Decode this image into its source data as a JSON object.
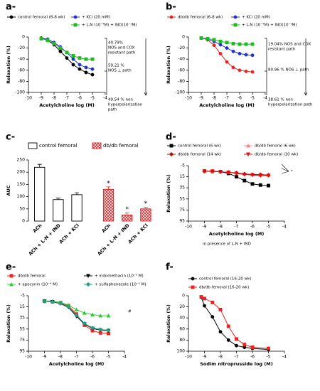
{
  "chart_data": [
    {
      "type": "line",
      "label": "a-",
      "x_label": "Acetylcholine log (M)",
      "y_label": "Relaxation (%)",
      "xlim": [
        -10,
        -4
      ],
      "xticks": [
        -10,
        -9,
        -8,
        -7,
        -6,
        -5,
        -4
      ],
      "ylim": [
        -100,
        0
      ],
      "yticks": [
        0,
        -20,
        -40,
        -60,
        -80,
        -100
      ],
      "x": [
        -9,
        -8.5,
        -8,
        -7.5,
        -7,
        -6.5,
        -6,
        -5.5,
        -5
      ],
      "series": [
        {
          "name": "control femoral (6-8 wk)",
          "color": "#000000",
          "marker": "circle",
          "values": [
            -2,
            -6,
            -14,
            -26,
            -38,
            -50,
            -58,
            -64,
            -68
          ],
          "errors": [
            1,
            2,
            3,
            3,
            3,
            3,
            3,
            3,
            3
          ]
        },
        {
          "name": "+ KCl (20 mM)",
          "color": "#2233cc",
          "marker": "circle",
          "values": [
            -2,
            -4,
            -10,
            -18,
            -28,
            -40,
            -50,
            -55,
            -58
          ],
          "errors": [
            1,
            2,
            2,
            3,
            3,
            3,
            3,
            3,
            3
          ]
        },
        {
          "name": "+ L-N (10⁻⁴M) + IND(10⁻⁵M)",
          "color": "#22bb22",
          "marker": "square",
          "values": [
            -3,
            -6,
            -12,
            -20,
            -28,
            -34,
            -38,
            -40,
            -40
          ],
          "errors": [
            1,
            2,
            2,
            3,
            3,
            3,
            3,
            3,
            3
          ]
        }
      ],
      "annotations": [
        [
          "40.79%",
          "NOS and COX",
          "resistant path"
        ],
        [
          "59.21 %",
          "NOS ⊥ path"
        ],
        [
          "49.54 % non",
          "hyperpolarization",
          "path"
        ]
      ]
    },
    {
      "type": "line",
      "label": "b-",
      "x_label": "Acetylcholine log (M)",
      "y_label": "Relaxation (%)",
      "xlim": [
        -10,
        -4
      ],
      "xticks": [
        -10,
        -9,
        -8,
        -7,
        -6,
        -5,
        -4
      ],
      "ylim": [
        -100,
        0
      ],
      "yticks": [
        0,
        -20,
        -40,
        -60,
        -80,
        -100
      ],
      "x": [
        -9,
        -8.5,
        -8,
        -7.5,
        -7,
        -6.5,
        -6,
        -5.5,
        -5
      ],
      "series": [
        {
          "name": "db/db femoral (6-8 wk)",
          "color": "#ee2222",
          "marker": "circle",
          "values": [
            -2,
            -5,
            -15,
            -30,
            -45,
            -55,
            -60,
            -62,
            -63
          ],
          "errors": [
            1,
            2,
            3,
            3,
            3,
            3,
            3,
            3,
            3
          ]
        },
        {
          "name": "+ KCl (20 mM)",
          "color": "#2233cc",
          "marker": "circle",
          "values": [
            -2,
            -4,
            -8,
            -14,
            -20,
            -26,
            -30,
            -32,
            -33
          ],
          "errors": [
            1,
            2,
            2,
            3,
            3,
            3,
            3,
            3,
            3
          ]
        },
        {
          "name": "+ L-N (10⁻⁴M) + IND(10⁻⁵M)",
          "color": "#22bb22",
          "marker": "square",
          "values": [
            -2,
            -3,
            -5,
            -8,
            -10,
            -12,
            -13,
            -13,
            -13
          ],
          "errors": [
            1,
            1,
            2,
            2,
            2,
            2,
            2,
            2,
            2
          ]
        }
      ],
      "annotations": [
        [
          "19.04% NOS and COX",
          "resistant path"
        ],
        [
          "80.96 % NOS ⊥ path"
        ],
        [
          "38.61 % non",
          "hyperpolarization path"
        ]
      ]
    },
    {
      "type": "bar",
      "label": "c-",
      "y_label": "AUC",
      "ylim": [
        0,
        250
      ],
      "yticks": [
        0,
        50,
        100,
        150,
        200,
        250
      ],
      "series": [
        {
          "name": "control femoral",
          "color": "#ffffff",
          "categories": [
            "ACh",
            "ACh + L-N + IND",
            "ACh + KCl"
          ],
          "values": [
            220,
            88,
            108
          ],
          "errors": [
            12,
            6,
            8
          ]
        },
        {
          "name": "db/db femoral",
          "color": "#e02020",
          "categories": [
            "ACh",
            "ACh + L-N + IND",
            "ACh + KCl"
          ],
          "values": [
            130,
            25,
            50
          ],
          "errors": [
            10,
            8,
            6
          ]
        }
      ],
      "annotations": [
        "*",
        "*",
        "*"
      ]
    },
    {
      "type": "line",
      "label": "d-",
      "x_label": "Acetylcholine log (M)",
      "y_label": "Relaxation (%)",
      "xlim": [
        -10,
        -4
      ],
      "xticks": [
        -10,
        -9,
        -8,
        -7,
        -6,
        -5,
        -4
      ],
      "ylim": [
        95,
        -5
      ],
      "yticks": [
        -5,
        15,
        35,
        55,
        75,
        95
      ],
      "x": [
        -9,
        -8.5,
        -8,
        -7.5,
        -7,
        -6.5,
        -6,
        -5.5,
        -5
      ],
      "series": [
        {
          "name": "control femoral (6 wk)",
          "color": "#000000",
          "marker": "square",
          "values": [
            5,
            5.5,
            6,
            9,
            15,
            22,
            28,
            30,
            31
          ],
          "errors": [
            1,
            1,
            1,
            2,
            2,
            2,
            2,
            2,
            2
          ]
        },
        {
          "name": "db/db femoral (6 wk)",
          "color": "#f08a8a",
          "marker": "triangle",
          "values": [
            5,
            5,
            6,
            7,
            9,
            10,
            11,
            12,
            12
          ],
          "errors": [
            1,
            1,
            1,
            2,
            2,
            2,
            2,
            2,
            2
          ]
        },
        {
          "name": "db/db femoral (14 wk)",
          "color": "#b01010",
          "marker": "diamond",
          "values": [
            5,
            5,
            6,
            7,
            8,
            10,
            11,
            11,
            12
          ],
          "errors": [
            1,
            1,
            1,
            2,
            2,
            2,
            2,
            2,
            2
          ]
        },
        {
          "name": "db/db femoral (10 wk)",
          "color": "#e01010",
          "marker": "tri-down",
          "values": [
            5,
            5,
            6,
            7,
            9,
            11,
            12,
            13,
            13
          ],
          "errors": [
            1,
            1,
            1,
            2,
            2,
            2,
            2,
            2,
            2
          ]
        }
      ],
      "annotations": [
        [
          "*"
        ],
        [
          "in presence of L-N + IND"
        ]
      ]
    },
    {
      "type": "line",
      "label": "e-",
      "x_label": "Acetylcholine log (M)",
      "y_label": "Relaxation (%)",
      "xlim": [
        -10,
        -4
      ],
      "xticks": [
        -10,
        -9,
        -8,
        -7,
        -6,
        -5,
        -4
      ],
      "ylim": [
        95,
        -5
      ],
      "yticks": [
        -5,
        15,
        35,
        55,
        75,
        95
      ],
      "x": [
        -9,
        -8.5,
        -8,
        -7.5,
        -7,
        -6.5,
        -6,
        -5.5,
        -5
      ],
      "series": [
        {
          "name": "db/db femoral",
          "color": "#ee2222",
          "marker": "square",
          "values": [
            5,
            6,
            8,
            13,
            28,
            48,
            58,
            62,
            63
          ],
          "errors": [
            1,
            1,
            2,
            2,
            3,
            3,
            3,
            3,
            3
          ]
        },
        {
          "name": "+ indomethacin (10⁻⁵ M)",
          "color": "#000000",
          "marker": "tri-down",
          "values": [
            5,
            6,
            9,
            16,
            32,
            46,
            54,
            57,
            58
          ],
          "errors": [
            1,
            1,
            2,
            2,
            3,
            3,
            3,
            3,
            3
          ]
        },
        {
          "name": "+ apocynin (10⁻⁴ M)",
          "color": "#33cc33",
          "marker": "triangle",
          "values": [
            4,
            5,
            7,
            12,
            20,
            26,
            29,
            31,
            31
          ],
          "errors": [
            1,
            1,
            2,
            2,
            2,
            2,
            2,
            2,
            2
          ]
        },
        {
          "name": "+ sulfaphenazole (10⁻⁵ M)",
          "color": "#1aa088",
          "marker": "diamond",
          "values": [
            5,
            6,
            8,
            15,
            30,
            45,
            53,
            56,
            57
          ],
          "errors": [
            1,
            1,
            2,
            2,
            3,
            3,
            3,
            3,
            3
          ]
        }
      ],
      "annotations": [
        [
          "#"
        ]
      ]
    },
    {
      "type": "line",
      "label": "f-",
      "x_label": "Sodim nitroprusside  log (M)",
      "y_label": "Relaxation (%)",
      "xlim": [
        -10,
        -4
      ],
      "xticks": [
        -10,
        -9,
        -8,
        -7,
        -6,
        -5,
        -4
      ],
      "ylim": [
        100,
        0
      ],
      "yticks": [
        0,
        20,
        40,
        60,
        80,
        100
      ],
      "x": [
        -9.2,
        -9,
        -8.5,
        -8,
        -7.5,
        -7,
        -6.5,
        -6,
        -5
      ],
      "series": [
        {
          "name": "control femoral (16-20 wk)",
          "color": "#000000",
          "marker": "circle",
          "values": [
            3,
            18,
            38,
            65,
            80,
            90,
            93,
            95,
            97
          ],
          "errors": [
            1,
            3,
            3,
            3,
            3,
            2,
            2,
            2,
            1
          ]
        },
        {
          "name": "db/db femoral (16-20 wk)",
          "color": "#ee2222",
          "marker": "square",
          "values": [
            2,
            5,
            12,
            25,
            55,
            78,
            88,
            93,
            95
          ],
          "errors": [
            1,
            2,
            3,
            3,
            3,
            3,
            2,
            2,
            1
          ]
        }
      ],
      "annotations": []
    }
  ]
}
